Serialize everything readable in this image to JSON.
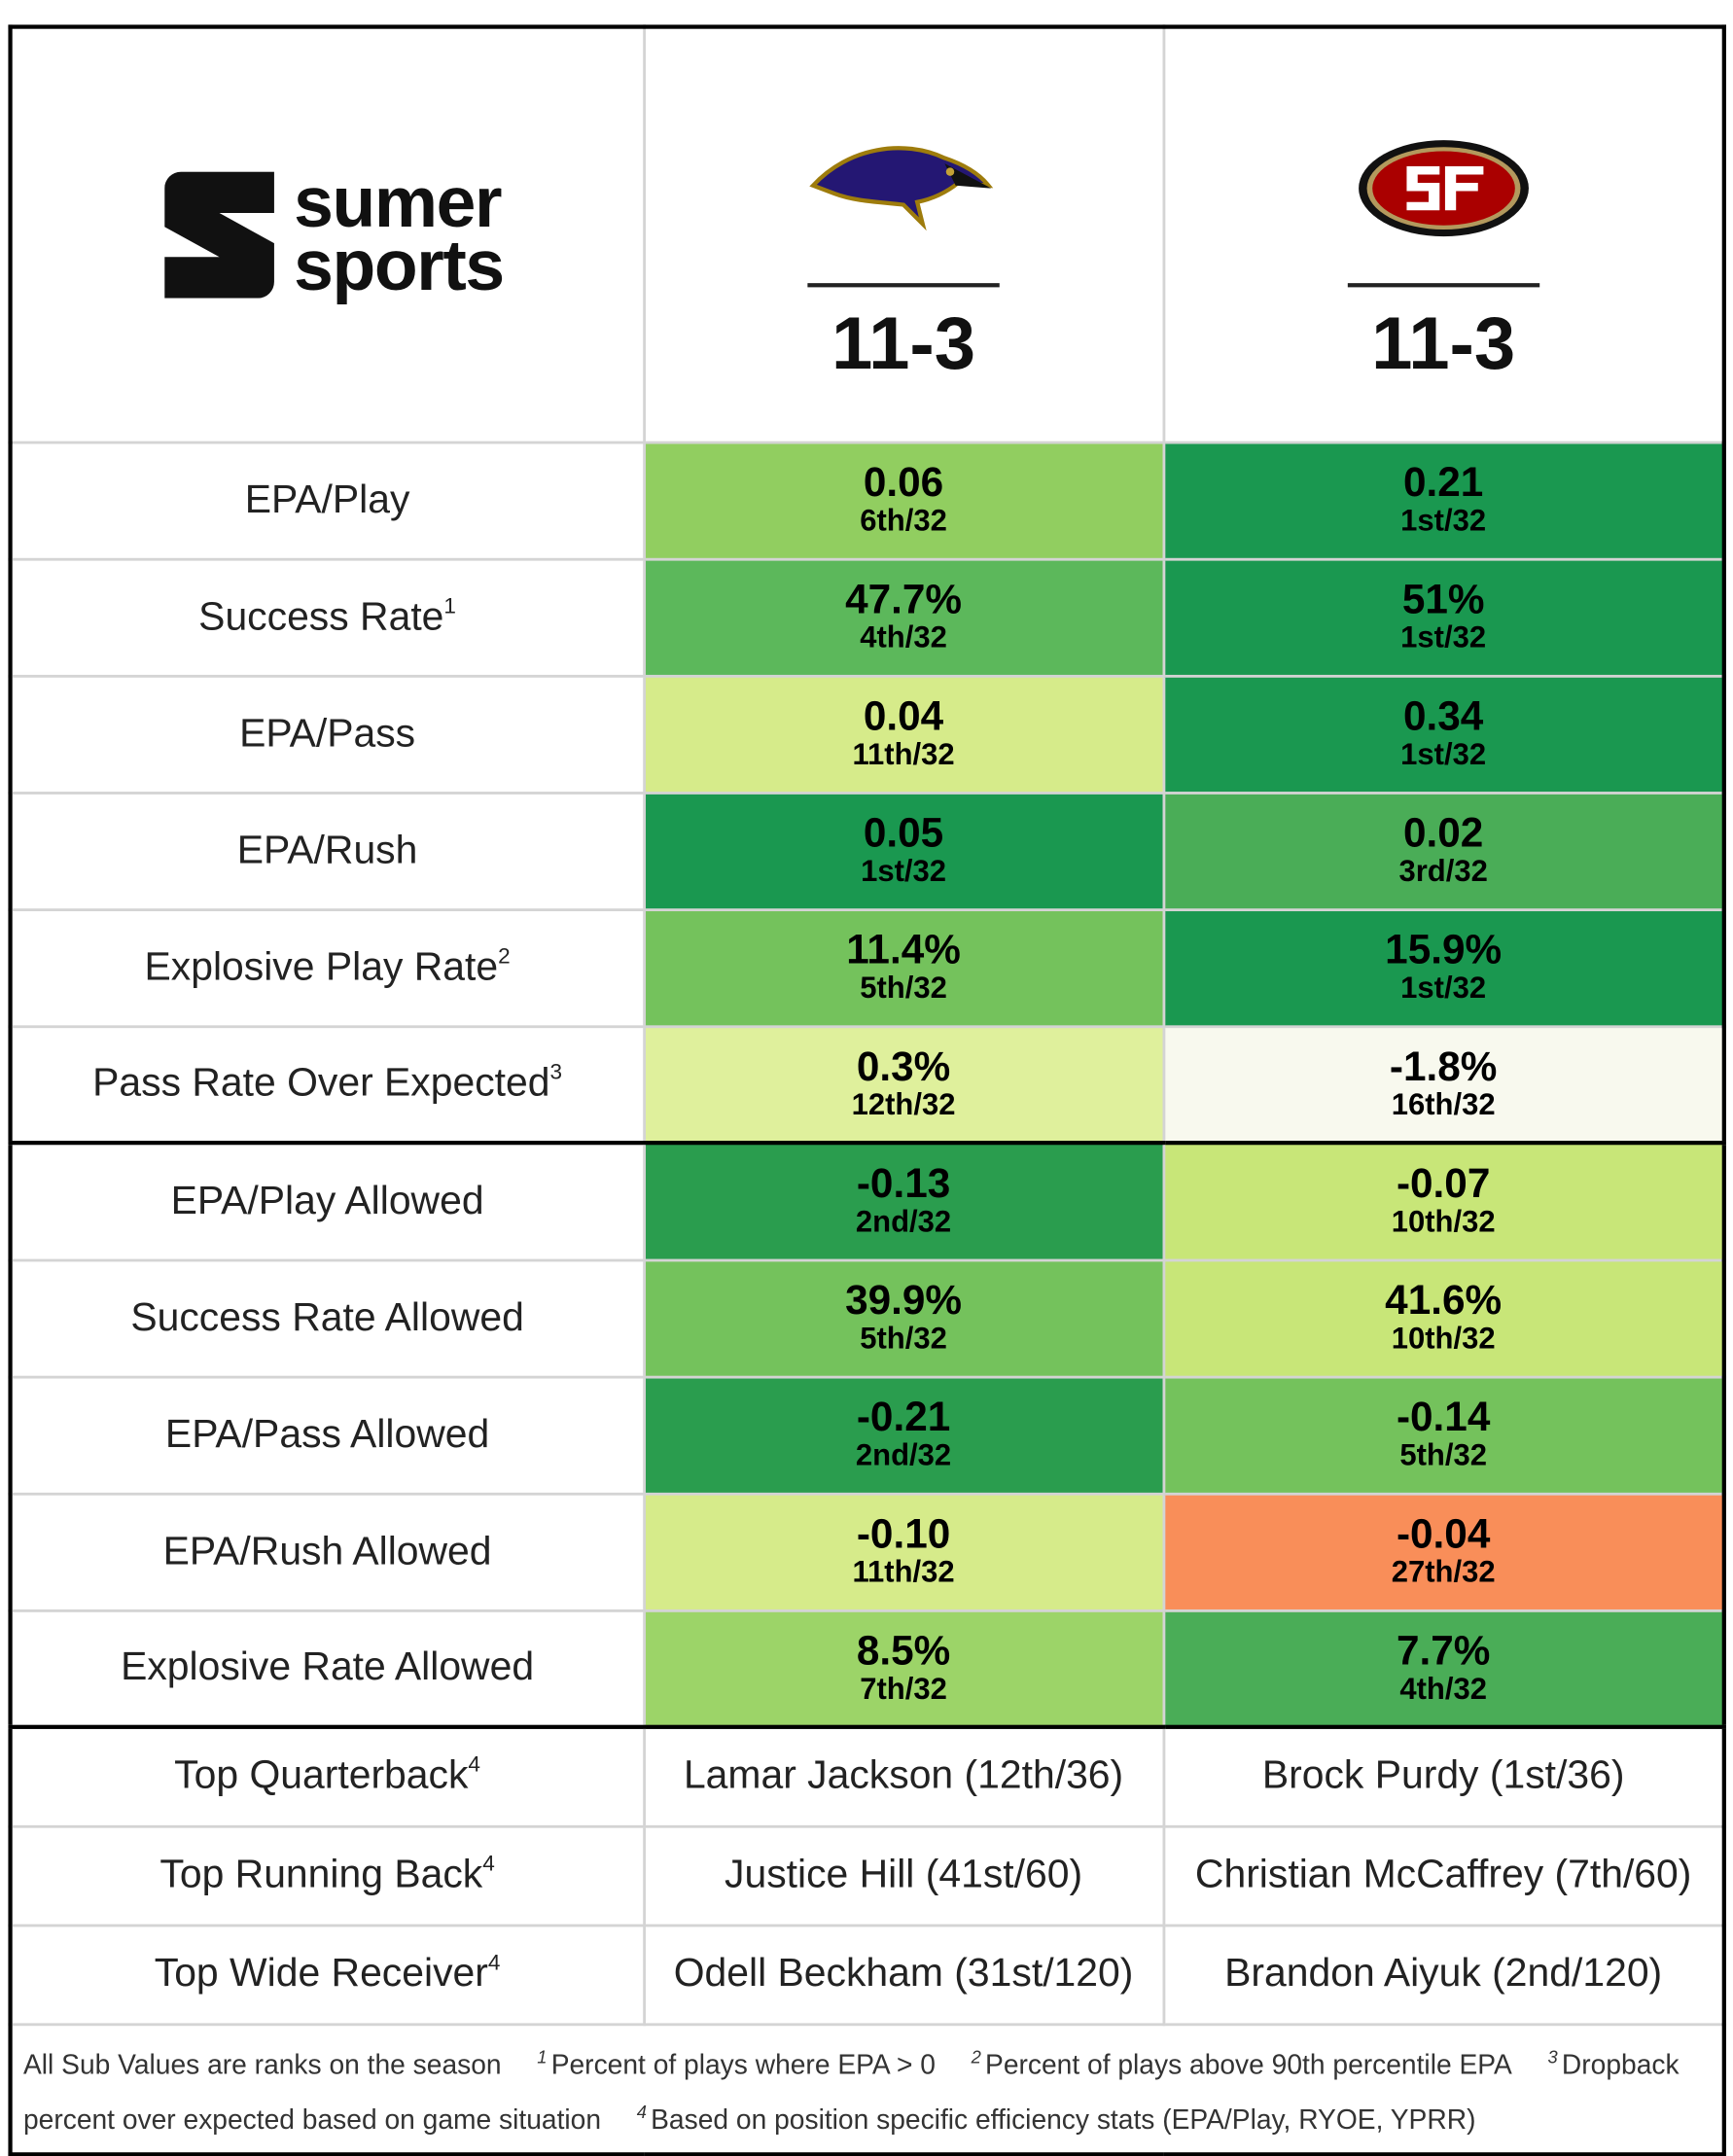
{
  "brand": {
    "line1": "sumer",
    "line2": "sports"
  },
  "teams": [
    {
      "record": "11-3"
    },
    {
      "record": "11-3"
    }
  ],
  "sections": [
    {
      "rows": [
        {
          "label": "EPA/Play",
          "cells": [
            {
              "value": "0.06",
              "rank": "6th/32",
              "color": "#91ce60"
            },
            {
              "value": "0.21",
              "rank": "1st/32",
              "color": "#1a9850"
            }
          ]
        },
        {
          "label": "Success Rate",
          "sup": "1",
          "cells": [
            {
              "value": "47.7%",
              "rank": "4th/32",
              "color": "#5cb85b"
            },
            {
              "value": "51%",
              "rank": "1st/32",
              "color": "#1a9850"
            }
          ]
        },
        {
          "label": "EPA/Pass",
          "cells": [
            {
              "value": "0.04",
              "rank": "11th/32",
              "color": "#d6eb8a"
            },
            {
              "value": "0.34",
              "rank": "1st/32",
              "color": "#1a9850"
            }
          ]
        },
        {
          "label": "EPA/Rush",
          "cells": [
            {
              "value": "0.05",
              "rank": "1st/32",
              "color": "#1a9850"
            },
            {
              "value": "0.02",
              "rank": "3rd/32",
              "color": "#4aad57"
            }
          ]
        },
        {
          "label": "Explosive Play Rate",
          "sup": "2",
          "cells": [
            {
              "value": "11.4%",
              "rank": "5th/32",
              "color": "#74c25c"
            },
            {
              "value": "15.9%",
              "rank": "1st/32",
              "color": "#1a9850"
            }
          ]
        },
        {
          "label": "Pass Rate Over Expected",
          "sup": "3",
          "cells": [
            {
              "value": "0.3%",
              "rank": "12th/32",
              "color": "#dff09c"
            },
            {
              "value": "-1.8%",
              "rank": "16th/32",
              "color": "#f8f9ee"
            }
          ]
        }
      ]
    },
    {
      "rows": [
        {
          "label": "EPA/Play Allowed",
          "cells": [
            {
              "value": "-0.13",
              "rank": "2nd/32",
              "color": "#2a9d4e"
            },
            {
              "value": "-0.07",
              "rank": "10th/32",
              "color": "#c8e678"
            }
          ]
        },
        {
          "label": "Success Rate Allowed",
          "cells": [
            {
              "value": "39.9%",
              "rank": "5th/32",
              "color": "#74c25c"
            },
            {
              "value": "41.6%",
              "rank": "10th/32",
              "color": "#c8e678"
            }
          ]
        },
        {
          "label": "EPA/Pass Allowed",
          "cells": [
            {
              "value": "-0.21",
              "rank": "2nd/32",
              "color": "#2a9d4e"
            },
            {
              "value": "-0.14",
              "rank": "5th/32",
              "color": "#74c25c"
            }
          ]
        },
        {
          "label": "EPA/Rush Allowed",
          "cells": [
            {
              "value": "-0.10",
              "rank": "11th/32",
              "color": "#d6eb8a"
            },
            {
              "value": "-0.04",
              "rank": "27th/32",
              "color": "#f98e59"
            }
          ]
        },
        {
          "label": "Explosive Rate Allowed",
          "cells": [
            {
              "value": "8.5%",
              "rank": "7th/32",
              "color": "#9cd468"
            },
            {
              "value": "7.7%",
              "rank": "4th/32",
              "color": "#4aad57"
            }
          ]
        }
      ]
    }
  ],
  "players": [
    {
      "label": "Top Quarterback",
      "sup": "4",
      "cells": [
        "Lamar Jackson (12th/36)",
        "Brock Purdy (1st/36)"
      ]
    },
    {
      "label": "Top Running Back",
      "sup": "4",
      "cells": [
        "Justice Hill (41st/60)",
        "Christian McCaffrey (7th/60)"
      ]
    },
    {
      "label": "Top Wide Receiver",
      "sup": "4",
      "cells": [
        "Odell Beckham (31st/120)",
        "Brandon Aiyuk (2nd/120)"
      ]
    }
  ],
  "footer": {
    "intro": "All Sub Values are ranks on the season",
    "notes": [
      {
        "mark": "1",
        "text": "Percent of plays where EPA > 0"
      },
      {
        "mark": "2",
        "text": "Percent of plays above 90th percentile EPA"
      },
      {
        "mark": "3",
        "text": "Dropback percent over expected based on game situation"
      },
      {
        "mark": "4",
        "text": "Based on position specific efficiency stats (EPA/Play, RYOE, YPRR)"
      }
    ]
  }
}
